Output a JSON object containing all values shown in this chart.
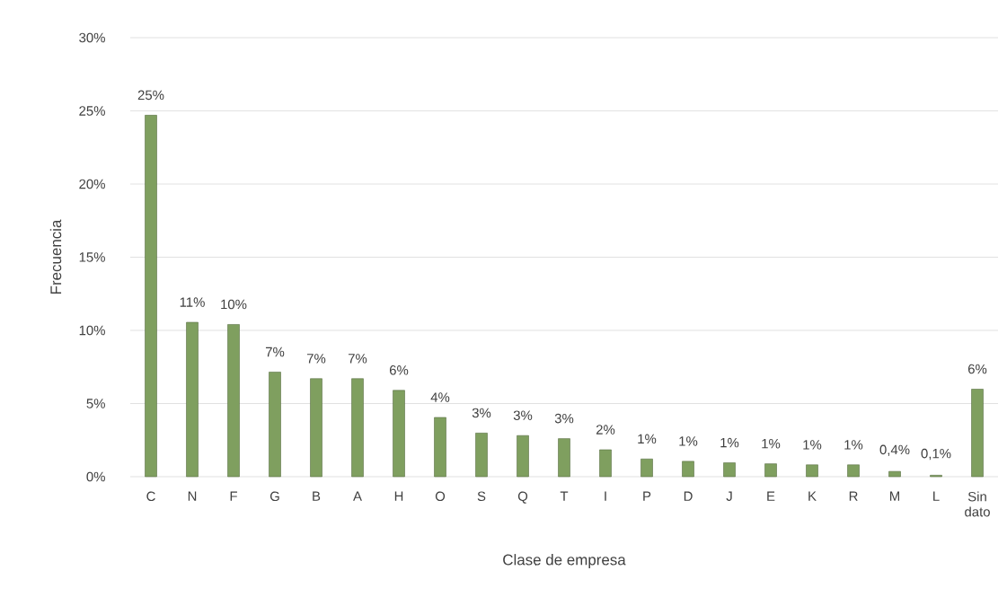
{
  "chart_data": {
    "type": "bar",
    "xlabel": "Clase de empresa",
    "ylabel": "Frecuencia",
    "categories": [
      "C",
      "N",
      "F",
      "G",
      "B",
      "A",
      "H",
      "O",
      "S",
      "Q",
      "T",
      "I",
      "P",
      "D",
      "J",
      "E",
      "K",
      "R",
      "M",
      "L",
      "Sin dato"
    ],
    "values": [
      24.7,
      10.55,
      10.4,
      7.15,
      6.7,
      6.7,
      5.9,
      4.05,
      2.98,
      2.81,
      2.6,
      1.84,
      1.21,
      1.05,
      0.95,
      0.88,
      0.81,
      0.81,
      0.36,
      0.1,
      5.98
    ],
    "value_labels": [
      "25%",
      "11%",
      "10%",
      "7%",
      "7%",
      "7%",
      "6%",
      "4%",
      "3%",
      "3%",
      "3%",
      "2%",
      "1%",
      "1%",
      "1%",
      "1%",
      "1%",
      "1%",
      "0,4%",
      "0,1%",
      "6%"
    ],
    "color": "#7f9f5f",
    "ylim": [
      0,
      30
    ],
    "yticks": [
      {
        "value": 0,
        "label": "0%"
      },
      {
        "value": 5,
        "label": "5%"
      },
      {
        "value": 10,
        "label": "10%"
      },
      {
        "value": 15,
        "label": "15%"
      },
      {
        "value": 20,
        "label": "20%"
      },
      {
        "value": 25,
        "label": "25%"
      },
      {
        "value": 30,
        "label": "30%"
      }
    ],
    "grid": "y"
  }
}
